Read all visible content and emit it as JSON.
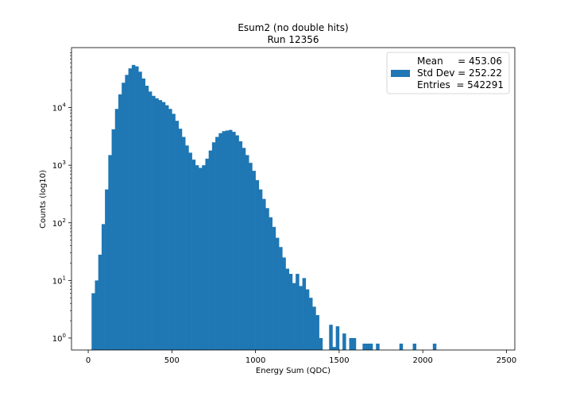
{
  "chart_data": {
    "type": "bar",
    "title": "Esum2 (no double hits)",
    "subtitle": "Run 12356",
    "xlabel": "Energy Sum (QDC)",
    "ylabel": "Counts (log10)",
    "xlim": [
      -100,
      2550
    ],
    "ylim": [
      0.62,
      110000
    ],
    "yscale": "log",
    "x_ticks": [
      0,
      500,
      1000,
      1500,
      2000,
      2500
    ],
    "y_ticks": [
      {
        "value": 1,
        "base": "10",
        "exp": "0"
      },
      {
        "value": 10,
        "base": "10",
        "exp": "1"
      },
      {
        "value": 100,
        "base": "10",
        "exp": "2"
      },
      {
        "value": 1000,
        "base": "10",
        "exp": "3"
      },
      {
        "value": 10000,
        "base": "10",
        "exp": "4"
      }
    ],
    "grid": false,
    "legend_position": "top-right",
    "bar_color": "#1f77b4",
    "bin_width": 20,
    "bin_edges_start": 20,
    "values": [
      6,
      10,
      28,
      95,
      380,
      1500,
      4200,
      9500,
      17000,
      27000,
      37000,
      48000,
      55000,
      52000,
      42000,
      32000,
      24000,
      19000,
      16000,
      14500,
      13500,
      12500,
      11000,
      9500,
      7800,
      5900,
      4300,
      3100,
      2200,
      1650,
      1250,
      1000,
      900,
      1000,
      1300,
      1800,
      2500,
      3100,
      3600,
      3900,
      4000,
      4100,
      3800,
      3300,
      2600,
      2000,
      1500,
      1100,
      800,
      550,
      380,
      260,
      180,
      125,
      85,
      55,
      38,
      25,
      16,
      13,
      9,
      13,
      8,
      11,
      7,
      5,
      3.5,
      2.5,
      1,
      0,
      0,
      1.7,
      0.7,
      1.6,
      0.6,
      1.2,
      0,
      1,
      1,
      0,
      0,
      0.8,
      0.8,
      0.8,
      0,
      0.8,
      0,
      0,
      0,
      0,
      0,
      0,
      0.8,
      0,
      0,
      0,
      0.8,
      0,
      0,
      0,
      0,
      0,
      0.8
    ],
    "legend": {
      "rows": [
        {
          "label": "Mean",
          "eq": "= 453.06"
        },
        {
          "label": "Std Dev",
          "eq": "= 252.22"
        },
        {
          "label": "Entries",
          "eq": "= 542291"
        }
      ]
    }
  }
}
